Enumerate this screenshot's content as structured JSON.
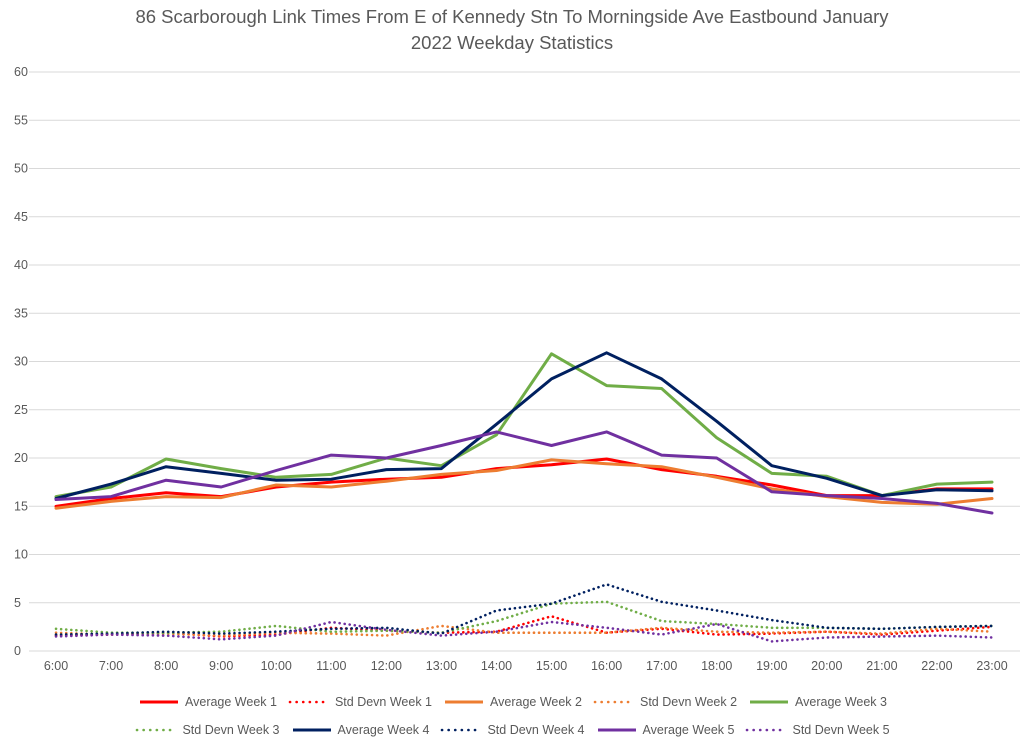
{
  "chart_data": {
    "type": "line",
    "title": "86 Scarborough Link Times From E of Kennedy Stn To Morningside Ave Eastbound January 2022 Weekday Statistics",
    "title_lines": [
      "86 Scarborough Link Times From E of Kennedy Stn To Morningside Ave Eastbound January",
      "2022 Weekday Statistics"
    ],
    "xlabel": "",
    "ylabel": "",
    "ylim": [
      0,
      60
    ],
    "yticks": [
      0,
      5,
      10,
      15,
      20,
      25,
      30,
      35,
      40,
      45,
      50,
      55,
      60
    ],
    "grid": true,
    "legend_position": "bottom",
    "categories": [
      "6:00",
      "7:00",
      "8:00",
      "9:00",
      "10:00",
      "11:00",
      "12:00",
      "13:00",
      "14:00",
      "15:00",
      "16:00",
      "17:00",
      "18:00",
      "19:00",
      "20:00",
      "21:00",
      "22:00",
      "23:00"
    ],
    "series": [
      {
        "name": "Average Week 1",
        "color": "#FF0000",
        "style": "solid",
        "values": [
          15.0,
          15.8,
          16.4,
          16.0,
          17.0,
          17.5,
          17.8,
          18.0,
          18.9,
          19.3,
          19.9,
          18.8,
          18.1,
          17.2,
          16.1,
          16.1,
          16.8,
          16.8
        ]
      },
      {
        "name": "Std Devn Week 1",
        "color": "#FF0000",
        "style": "dotted",
        "values": [
          1.6,
          1.7,
          1.9,
          1.5,
          1.7,
          2.4,
          2.1,
          1.9,
          2.0,
          3.6,
          1.9,
          2.3,
          1.7,
          1.8,
          2.0,
          1.7,
          2.1,
          2.5
        ]
      },
      {
        "name": "Average Week 2",
        "color": "#ED7D31",
        "style": "solid",
        "values": [
          14.8,
          15.5,
          16.0,
          15.9,
          17.2,
          17.0,
          17.6,
          18.3,
          18.7,
          19.8,
          19.4,
          19.1,
          18.0,
          16.8,
          16.0,
          15.4,
          15.2,
          15.8
        ]
      },
      {
        "name": "Std Devn Week 2",
        "color": "#ED7D31",
        "style": "dotted",
        "values": [
          1.9,
          1.7,
          1.8,
          1.6,
          1.9,
          1.8,
          1.6,
          2.6,
          1.9,
          1.9,
          1.9,
          2.4,
          2.0,
          1.9,
          2.0,
          1.8,
          2.3,
          2.0
        ]
      },
      {
        "name": "Average Week 3",
        "color": "#70AD47",
        "style": "solid",
        "values": [
          16.0,
          17.0,
          19.9,
          18.9,
          18.0,
          18.3,
          20.0,
          19.2,
          22.4,
          30.8,
          27.5,
          27.2,
          22.1,
          18.4,
          18.1,
          16.1,
          17.3,
          17.5
        ]
      },
      {
        "name": "Std Devn Week 3",
        "color": "#70AD47",
        "style": "dotted",
        "values": [
          2.3,
          1.9,
          1.9,
          2.0,
          2.6,
          2.0,
          2.1,
          1.9,
          3.1,
          4.9,
          5.1,
          3.1,
          2.8,
          2.4,
          2.4,
          2.3,
          2.5,
          2.6
        ]
      },
      {
        "name": "Average Week 4",
        "color": "#002060",
        "style": "solid",
        "values": [
          15.8,
          17.3,
          19.1,
          18.4,
          17.7,
          17.8,
          18.8,
          18.9,
          23.5,
          28.2,
          30.9,
          28.2,
          23.8,
          19.2,
          17.9,
          16.1,
          16.7,
          16.6
        ]
      },
      {
        "name": "Std Devn Week 4",
        "color": "#002060",
        "style": "dotted",
        "values": [
          1.7,
          1.8,
          2.0,
          1.8,
          2.0,
          2.3,
          2.4,
          1.8,
          4.2,
          4.9,
          6.9,
          5.1,
          4.2,
          3.2,
          2.4,
          2.3,
          2.5,
          2.6
        ]
      },
      {
        "name": "Average Week 5",
        "color": "#7030A0",
        "style": "solid",
        "values": [
          15.7,
          16.0,
          17.7,
          17.0,
          18.7,
          20.3,
          20.0,
          21.3,
          22.7,
          21.3,
          22.7,
          20.3,
          20.0,
          16.5,
          16.1,
          15.8,
          15.3,
          14.3
        ]
      },
      {
        "name": "Std Devn Week 5",
        "color": "#7030A0",
        "style": "dotted",
        "values": [
          1.5,
          1.7,
          1.6,
          1.2,
          1.6,
          3.0,
          2.2,
          1.6,
          2.0,
          3.0,
          2.4,
          1.7,
          2.8,
          1.0,
          1.4,
          1.5,
          1.6,
          1.4
        ]
      }
    ]
  }
}
